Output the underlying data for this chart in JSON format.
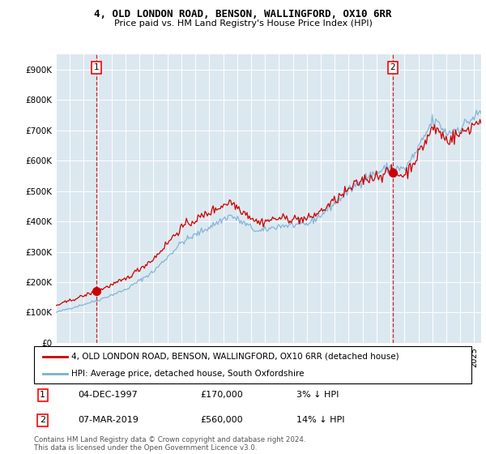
{
  "title1": "4, OLD LONDON ROAD, BENSON, WALLINGFORD, OX10 6RR",
  "title2": "Price paid vs. HM Land Registry's House Price Index (HPI)",
  "sale1_date": "04-DEC-1997",
  "sale1_price": 170000,
  "sale1_label": "3% ↓ HPI",
  "sale1_year": 1997.917,
  "sale2_date": "07-MAR-2019",
  "sale2_price": 560000,
  "sale2_label": "14% ↓ HPI",
  "sale2_year": 2019.167,
  "legend_line1": "4, OLD LONDON ROAD, BENSON, WALLINGFORD, OX10 6RR (detached house)",
  "legend_line2": "HPI: Average price, detached house, South Oxfordshire",
  "footer": "Contains HM Land Registry data © Crown copyright and database right 2024.\nThis data is licensed under the Open Government Licence v3.0.",
  "hpi_color": "#7ab0d4",
  "price_color": "#cc0000",
  "plot_bg_color": "#dce8f0",
  "ylim": [
    0,
    950000
  ],
  "yticks": [
    0,
    100000,
    200000,
    300000,
    400000,
    500000,
    600000,
    700000,
    800000,
    900000
  ],
  "ytick_labels": [
    "£0",
    "£100K",
    "£200K",
    "£300K",
    "£400K",
    "£500K",
    "£600K",
    "£700K",
    "£800K",
    "£900K"
  ],
  "xmin": 1995.0,
  "xmax": 2025.5
}
